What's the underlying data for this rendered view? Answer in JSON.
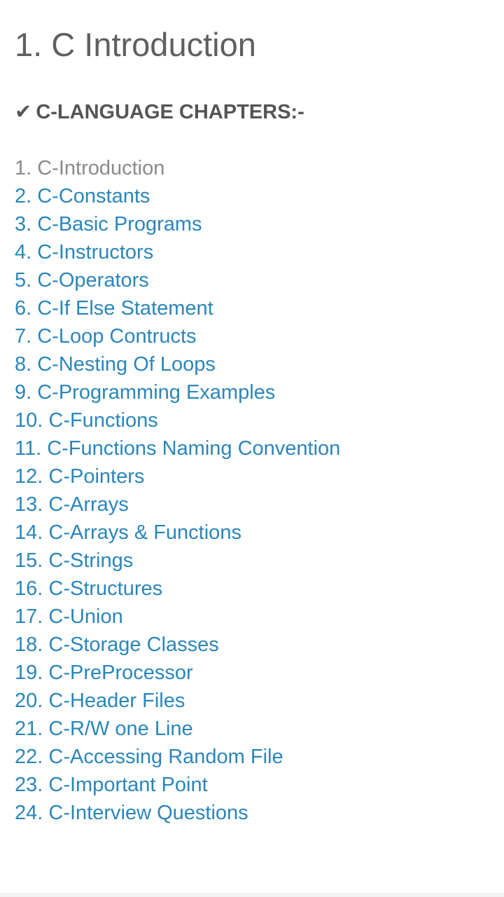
{
  "page": {
    "title": "1. C Introduction",
    "section_heading": "C-LANGUAGE CHAPTERS:-",
    "check_icon": "✔"
  },
  "chapters": [
    {
      "label": "1. C-Introduction",
      "current": true
    },
    {
      "label": "2. C-Constants",
      "current": false
    },
    {
      "label": "3. C-Basic Programs",
      "current": false
    },
    {
      "label": "4. C-Instructors",
      "current": false
    },
    {
      "label": "5. C-Operators",
      "current": false
    },
    {
      "label": "6. C-If Else Statement",
      "current": false
    },
    {
      "label": "7. C-Loop Contructs",
      "current": false
    },
    {
      "label": "8. C-Nesting Of Loops",
      "current": false
    },
    {
      "label": "9. C-Programming Examples",
      "current": false
    },
    {
      "label": "10. C-Functions",
      "current": false
    },
    {
      "label": "11. C-Functions Naming Convention",
      "current": false
    },
    {
      "label": "12. C-Pointers",
      "current": false
    },
    {
      "label": "13. C-Arrays",
      "current": false
    },
    {
      "label": "14. C-Arrays & Functions",
      "current": false
    },
    {
      "label": "15. C-Strings",
      "current": false
    },
    {
      "label": "16. C-Structures",
      "current": false
    },
    {
      "label": "17. C-Union",
      "current": false
    },
    {
      "label": "18. C-Storage Classes",
      "current": false
    },
    {
      "label": "19. C-PreProcessor",
      "current": false
    },
    {
      "label": "20. C-Header Files",
      "current": false
    },
    {
      "label": "21. C-R/W one Line",
      "current": false
    },
    {
      "label": "22. C-Accessing Random File",
      "current": false
    },
    {
      "label": "23. C-Important Point",
      "current": false
    },
    {
      "label": "24. C-Interview Questions",
      "current": false
    }
  ],
  "colors": {
    "link": "#2a86ba",
    "current_link": "#8a8a8a",
    "title": "#5f5f5f",
    "heading": "#555555"
  }
}
